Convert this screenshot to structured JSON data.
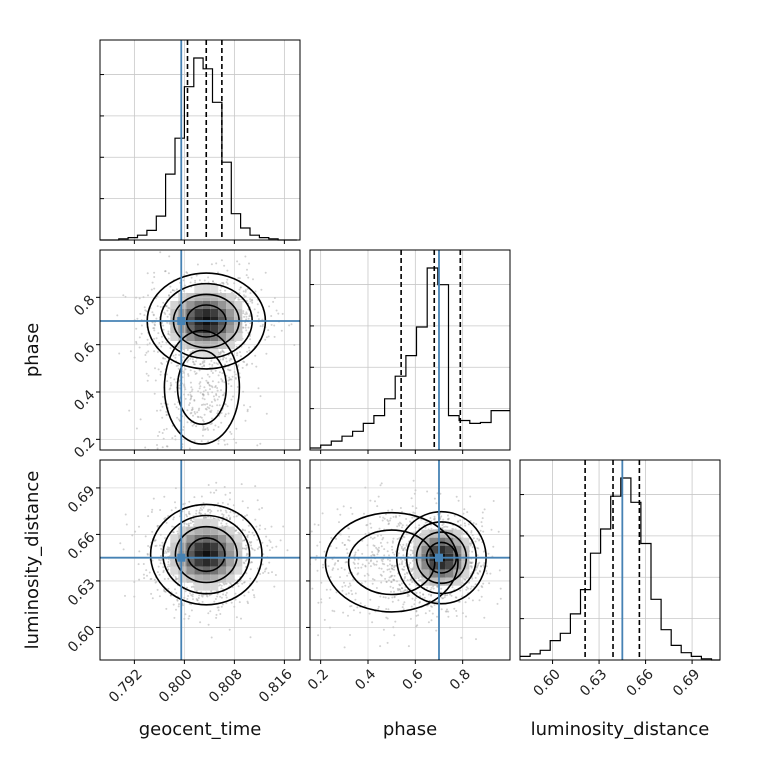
{
  "chart_data": {
    "type": "corner",
    "parameters": [
      "geocent_time",
      "phase",
      "luminosity_distance"
    ],
    "truths": {
      "geocent_time": 0.7995,
      "phase": 0.7,
      "luminosity_distance": 0.645
    },
    "colors": {
      "truth": "#4682b4",
      "contour": "#000000",
      "hist": "#000000",
      "scatter": "#9a9a9a",
      "grid": "#c8c8c8"
    },
    "ranges": {
      "geocent_time": [
        0.7865,
        0.8185
      ],
      "phase": [
        0.155,
        1.0
      ],
      "luminosity_distance": [
        0.579,
        0.708
      ]
    },
    "quantiles": {
      "geocent_time": [
        0.8005,
        0.8035,
        0.806
      ],
      "phase": [
        0.54,
        0.68,
        0.79
      ],
      "luminosity_distance": [
        0.621,
        0.639,
        0.656
      ]
    },
    "ticks": {
      "geocent_time": {
        "values": [
          0.792,
          0.8,
          0.808,
          0.816
        ],
        "labels": [
          "0.792",
          "0.800",
          "0.808",
          "0.816"
        ]
      },
      "phase": {
        "values": [
          0.2,
          0.4,
          0.6,
          0.8
        ],
        "labels": [
          "0.2",
          "0.4",
          "0.6",
          "0.8"
        ]
      },
      "luminosity_distance": {
        "values": [
          0.6,
          0.63,
          0.66,
          0.69
        ],
        "labels": [
          "0.60",
          "0.63",
          "0.66",
          "0.69"
        ]
      }
    },
    "histograms": {
      "geocent_time": {
        "edges": [
          0.7865,
          0.788,
          0.7895,
          0.791,
          0.7925,
          0.794,
          0.7955,
          0.797,
          0.7985,
          0.8,
          0.8015,
          0.803,
          0.8045,
          0.806,
          0.8075,
          0.809,
          0.8105,
          0.812,
          0.8135,
          0.815,
          0.8165,
          0.818
        ],
        "counts": [
          0,
          0,
          1,
          2,
          4,
          8,
          20,
          55,
          85,
          128,
          152,
          143,
          115,
          65,
          22,
          10,
          4,
          2,
          1,
          0,
          0
        ]
      },
      "phase": {
        "edges": [
          0.155,
          0.2,
          0.245,
          0.29,
          0.335,
          0.38,
          0.425,
          0.47,
          0.515,
          0.56,
          0.605,
          0.65,
          0.695,
          0.74,
          0.785,
          0.83,
          0.875,
          0.92,
          0.965,
          1.0
        ],
        "counts": [
          2,
          5,
          9,
          14,
          19,
          27,
          35,
          52,
          75,
          96,
          125,
          185,
          168,
          35,
          30,
          27,
          28,
          40,
          40
        ]
      },
      "luminosity_distance": {
        "edges": [
          0.579,
          0.5855,
          0.592,
          0.5985,
          0.605,
          0.6115,
          0.618,
          0.6245,
          0.631,
          0.6375,
          0.644,
          0.6505,
          0.657,
          0.6635,
          0.67,
          0.6765,
          0.683,
          0.6895,
          0.696,
          0.7025,
          0.708
        ],
        "counts": [
          3,
          5,
          8,
          16,
          22,
          38,
          58,
          88,
          108,
          135,
          150,
          130,
          96,
          50,
          25,
          12,
          6,
          3,
          1,
          0
        ]
      }
    },
    "joint": {
      "phase_vs_geocent_time": {
        "mean": [
          0.8035,
          0.7
        ],
        "sd": [
          0.0035,
          0.075
        ],
        "tail": {
          "mean": [
            0.8028,
            0.42
          ],
          "sd": [
            0.003,
            0.12
          ],
          "weight": 0.3
        }
      },
      "luminosity_distance_vs_geocent_time": {
        "mean": [
          0.8035,
          0.647
        ],
        "sd": [
          0.0033,
          0.012
        ]
      },
      "luminosity_distance_vs_phase": {
        "mean": [
          0.71,
          0.645
        ],
        "sd": [
          0.07,
          0.011
        ],
        "tail": {
          "mean": [
            0.5,
            0.642
          ],
          "sd": [
            0.14,
            0.016
          ],
          "weight": 0.35
        }
      }
    }
  }
}
